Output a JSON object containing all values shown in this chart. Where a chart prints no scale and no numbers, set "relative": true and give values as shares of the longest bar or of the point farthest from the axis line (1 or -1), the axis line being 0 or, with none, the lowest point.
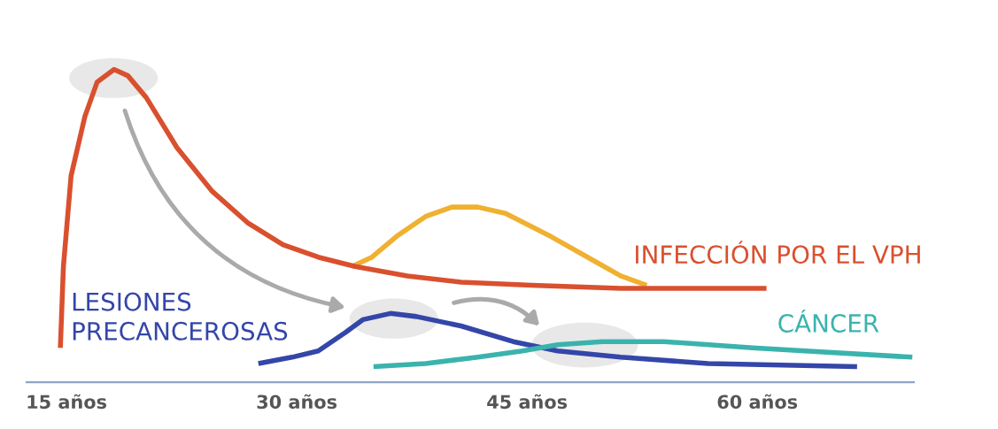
{
  "chart_data": {
    "type": "line",
    "relative": true,
    "xlim": [
      12.4,
      70.2
    ],
    "xticks": [
      {
        "value": 15,
        "label": "15 años"
      },
      {
        "value": 30,
        "label": "30 años"
      },
      {
        "value": 45,
        "label": "45 años"
      },
      {
        "value": 60,
        "label": "60 años"
      }
    ],
    "tick_labels": "x",
    "grid": false,
    "legend": false,
    "marker": "none",
    "line_style": "solid",
    "series": [
      {
        "name": "INFECCIÓN POR EL VPH",
        "color": "#d9502f",
        "x": [
          14.6,
          14.8,
          15.3,
          16.2,
          17.0,
          18.1,
          19.0,
          20.2,
          22.2,
          24.5,
          26.8,
          29.1,
          31.4,
          33.8,
          37.2,
          40.7,
          45.3,
          51.1,
          60.6
        ],
        "values": [
          0.11,
          0.37,
          0.66,
          0.85,
          0.96,
          1.0,
          0.98,
          0.91,
          0.75,
          0.61,
          0.51,
          0.44,
          0.4,
          0.37,
          0.34,
          0.32,
          0.31,
          0.3,
          0.3
        ]
      },
      {
        "color": "#f0b030",
        "x": [
          33.6,
          34.9,
          36.6,
          38.4,
          40.1,
          41.8,
          43.6,
          46.4,
          49.3,
          51.1,
          52.8
        ],
        "values": [
          0.37,
          0.4,
          0.47,
          0.53,
          0.56,
          0.56,
          0.54,
          0.47,
          0.39,
          0.34,
          0.31
        ]
      },
      {
        "name": "LESIONES\nPRECANCEROSAS",
        "color": "#3446a8",
        "x": [
          27.5,
          29.7,
          31.4,
          33.2,
          34.3,
          36.1,
          37.8,
          40.7,
          44.1,
          47.0,
          51.1,
          56.8,
          66.5
        ],
        "values": [
          0.06,
          0.08,
          0.1,
          0.16,
          0.2,
          0.22,
          0.21,
          0.18,
          0.13,
          0.1,
          0.08,
          0.06,
          0.05
        ]
      },
      {
        "name": "CÁNCER",
        "color": "#3bb3ad",
        "x": [
          35.0,
          38.4,
          41.8,
          44.7,
          47.0,
          49.9,
          53.9,
          59.7,
          70.1
        ],
        "values": [
          0.05,
          0.06,
          0.08,
          0.1,
          0.12,
          0.13,
          0.13,
          0.11,
          0.08
        ]
      }
    ]
  }
}
